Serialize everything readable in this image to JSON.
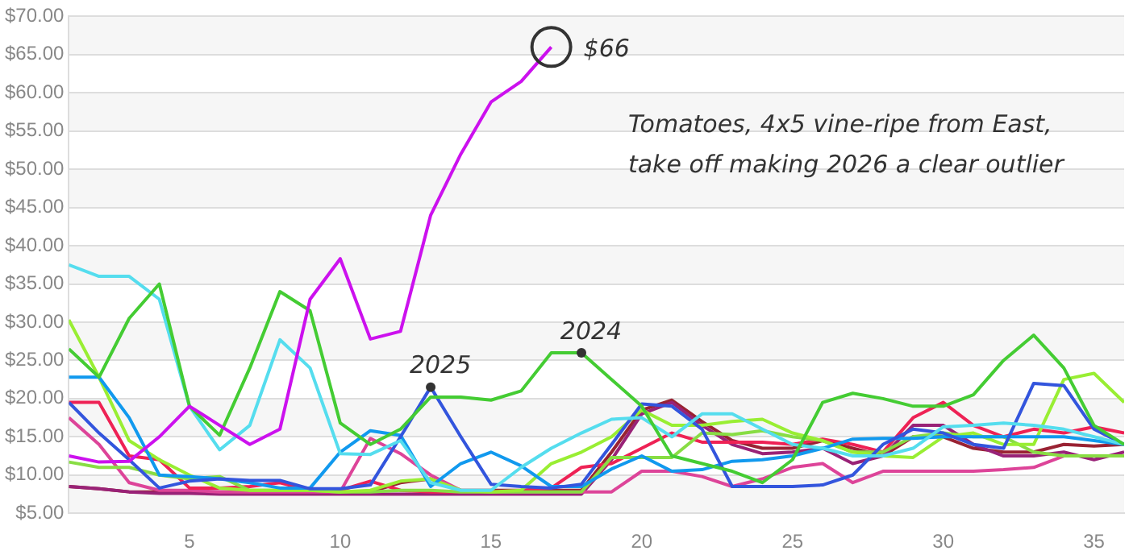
{
  "chart_data": {
    "type": "line",
    "x": [
      1,
      2,
      3,
      4,
      5,
      6,
      7,
      8,
      9,
      10,
      11,
      12,
      13,
      14,
      15,
      16,
      17,
      18,
      19,
      20,
      21,
      22,
      23,
      24,
      25,
      26,
      27,
      28,
      29,
      30,
      31,
      32,
      33,
      34,
      35,
      36
    ],
    "series": [
      {
        "color": "#cc11ee",
        "values": [
          12.5,
          11.7,
          11.8,
          15,
          19,
          16.5,
          14,
          16,
          33,
          38.3,
          27.8,
          28.8,
          44,
          52,
          58.8,
          61.5,
          66,
          null,
          null,
          null,
          null,
          null,
          null,
          null,
          null,
          null,
          null,
          null,
          null,
          null,
          null,
          null,
          null,
          null,
          null,
          null
        ]
      },
      {
        "color": "#44cc33",
        "values": [
          26.5,
          22.8,
          30.5,
          35,
          19,
          15.2,
          24,
          34,
          31.5,
          16.8,
          14,
          16,
          20.2,
          20.2,
          19.8,
          21,
          26,
          26,
          22.5,
          19,
          12.5,
          11.5,
          10.5,
          9,
          12,
          19.5,
          20.7,
          20,
          19,
          19,
          20.5,
          25,
          28.3,
          24,
          16.5,
          14
        ]
      },
      {
        "color": "#55ddee",
        "values": [
          37.5,
          36,
          36,
          33,
          19,
          13.3,
          16.5,
          27.7,
          24,
          12.8,
          12.7,
          14.5,
          9,
          8,
          8,
          11,
          13.5,
          15.5,
          17.3,
          17.5,
          15,
          18,
          18,
          16,
          14,
          13.5,
          12.5,
          12.5,
          13.5,
          16.3,
          16.5,
          16.8,
          16.5,
          16,
          15,
          14
        ]
      },
      {
        "color": "#3355dd",
        "values": [
          19.5,
          15.5,
          12,
          8.3,
          9.2,
          9.5,
          9.3,
          9.3,
          8.2,
          8.2,
          8.7,
          15,
          21.5,
          15,
          8.8,
          8.5,
          8.3,
          8.8,
          14,
          19.3,
          19,
          16,
          8.5,
          8.5,
          8.5,
          8.7,
          10,
          14,
          16,
          15.5,
          14,
          13.5,
          22,
          21.7,
          16,
          14
        ]
      },
      {
        "color": "#1199ee",
        "values": [
          22.8,
          22.8,
          17.5,
          10,
          9.8,
          9.5,
          9,
          8.3,
          8.3,
          13,
          15.8,
          15.2,
          8.5,
          11.5,
          13,
          11.2,
          8.5,
          8.5,
          10.8,
          12.5,
          10.5,
          10.7,
          11.8,
          12,
          12.5,
          13.5,
          14.7,
          14.8,
          14.8,
          15,
          15,
          15,
          15,
          15,
          14.5,
          14
        ]
      },
      {
        "color": "#99ee33",
        "values": [
          30.3,
          22.8,
          14.5,
          12,
          10,
          8.3,
          8,
          8,
          8,
          7.8,
          8,
          9.2,
          9.5,
          8,
          7.8,
          8,
          11.5,
          13,
          15,
          18.5,
          16.5,
          16.5,
          17,
          17.3,
          15.5,
          14.5,
          13,
          12.5,
          12.3,
          15,
          15.5,
          14,
          14,
          22.5,
          23.3,
          19.5
        ]
      },
      {
        "color": "#88dd44",
        "values": [
          11.7,
          11,
          11,
          10,
          9.5,
          9.8,
          8,
          8,
          8,
          7.8,
          7.8,
          8,
          8,
          7.8,
          7.8,
          7.8,
          7.8,
          7.8,
          12.3,
          12.3,
          12.3,
          15.5,
          15.3,
          15.8,
          15,
          14.5,
          13,
          13,
          15,
          15.5,
          15,
          15,
          13,
          12.5,
          12.5,
          12.5
        ]
      },
      {
        "color": "#ee2255",
        "values": [
          19.5,
          19.5,
          12.5,
          12,
          8.3,
          8.3,
          8.5,
          9,
          8,
          8,
          9.2,
          8,
          7.8,
          7.8,
          7.8,
          8,
          8.3,
          11,
          11.5,
          13.5,
          15.5,
          14.3,
          14.3,
          14.3,
          14,
          14.7,
          14,
          13,
          17.5,
          19.5,
          16.5,
          15,
          16,
          15.5,
          16.3,
          15.5
        ]
      },
      {
        "color": "#dd4499",
        "values": [
          17.5,
          14,
          9,
          8,
          8,
          7.8,
          7.8,
          7.8,
          7.8,
          7.8,
          14.8,
          12.8,
          10,
          8,
          7.8,
          7.8,
          7.8,
          7.8,
          7.8,
          10.5,
          10.5,
          9.8,
          8.5,
          9.5,
          11,
          11.5,
          9,
          10.5,
          10.5,
          10.5,
          10.5,
          10.7,
          11,
          12.5,
          12.5,
          12.5
        ]
      },
      {
        "color": "#992277",
        "values": [
          8.5,
          8.2,
          7.8,
          7.6,
          7.6,
          7.5,
          7.5,
          7.5,
          7.5,
          7.5,
          7.5,
          7.5,
          7.5,
          7.5,
          7.5,
          7.5,
          7.5,
          7.5,
          12,
          18,
          19.5,
          16.5,
          14,
          12.8,
          13,
          13.5,
          11.5,
          12.5,
          16.5,
          16.5,
          14,
          12.5,
          12.5,
          13,
          12,
          13
        ]
      },
      {
        "color": "#992233",
        "values": [
          8.5,
          8.2,
          7.8,
          7.8,
          7.8,
          7.8,
          7.8,
          7.8,
          7.8,
          7.8,
          7.8,
          9,
          9.5,
          8,
          8,
          8,
          8,
          8,
          13,
          18.5,
          19.8,
          17,
          14.5,
          13.5,
          13.5,
          14.5,
          13.5,
          12.5,
          15,
          15,
          13.5,
          13,
          13,
          14,
          13.8,
          14
        ]
      }
    ],
    "xlim": [
      1,
      36
    ],
    "xticks": [
      5,
      10,
      15,
      20,
      25,
      30,
      35
    ],
    "ylim": [
      5,
      70
    ],
    "yticks": [
      {
        "value": 5,
        "label": "$5.00"
      },
      {
        "value": 10,
        "label": "$10.00"
      },
      {
        "value": 15,
        "label": "$15.00"
      },
      {
        "value": 20,
        "label": "$20.00"
      },
      {
        "value": 25,
        "label": "$25.00"
      },
      {
        "value": 30,
        "label": "$30.00"
      },
      {
        "value": 35,
        "label": "$35.00"
      },
      {
        "value": 40,
        "label": "$40.00"
      },
      {
        "value": 45,
        "label": "$45.00"
      },
      {
        "value": 50,
        "label": "$50.00"
      },
      {
        "value": 55,
        "label": "$55.00"
      },
      {
        "value": 60,
        "label": "$60.00"
      },
      {
        "value": 65,
        "label": "$65.00"
      },
      {
        "value": 70,
        "label": "$70.00"
      }
    ],
    "grid": "y",
    "legend": false,
    "marker": "none",
    "annotations": [
      {
        "text": "$66",
        "x": 17,
        "y": 66
      },
      {
        "text": "2025",
        "x": 13,
        "y": 21.5
      },
      {
        "text": "2024",
        "x": 18,
        "y": 26
      },
      "Tomatoes, 4x5 vine-ripe from East,\ntake off making 2026 a clear outlier"
    ]
  }
}
